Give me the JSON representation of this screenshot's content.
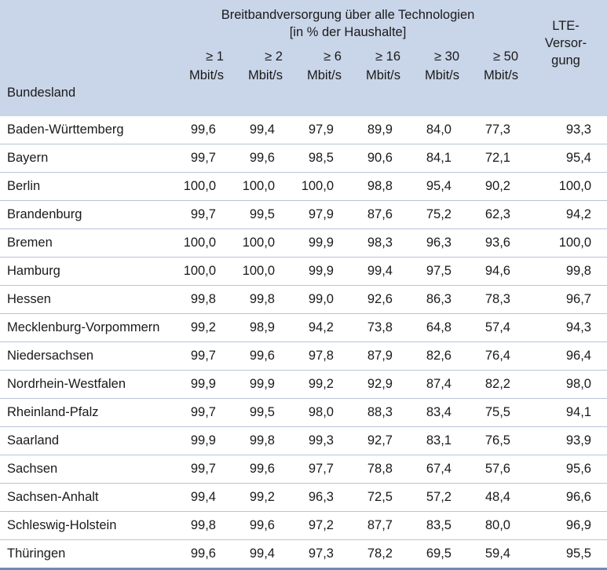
{
  "header": {
    "group_line1": "Breitbandversorgung über alle Technologien",
    "group_line2": "[in % der Haushalte]",
    "land_label": "Bundesland",
    "lte_line1": "LTE-",
    "lte_line2": "Versor-",
    "lte_line3": "gung",
    "speeds": [
      {
        "threshold": "≥ 1",
        "unit": "Mbit/s"
      },
      {
        "threshold": "≥ 2",
        "unit": "Mbit/s"
      },
      {
        "threshold": "≥ 6",
        "unit": "Mbit/s"
      },
      {
        "threshold": "≥ 16",
        "unit": "Mbit/s"
      },
      {
        "threshold": "≥ 30",
        "unit": "Mbit/s"
      },
      {
        "threshold": "≥ 50",
        "unit": "Mbit/s"
      }
    ]
  },
  "rows": [
    {
      "land": "Baden-Württemberg",
      "values": [
        "99,6",
        "99,4",
        "97,9",
        "89,9",
        "84,0",
        "77,3"
      ],
      "lte": "93,3"
    },
    {
      "land": "Bayern",
      "values": [
        "99,7",
        "99,6",
        "98,5",
        "90,6",
        "84,1",
        "72,1"
      ],
      "lte": "95,4"
    },
    {
      "land": "Berlin",
      "values": [
        "100,0",
        "100,0",
        "100,0",
        "98,8",
        "95,4",
        "90,2"
      ],
      "lte": "100,0"
    },
    {
      "land": "Brandenburg",
      "values": [
        "99,7",
        "99,5",
        "97,9",
        "87,6",
        "75,2",
        "62,3"
      ],
      "lte": "94,2"
    },
    {
      "land": "Bremen",
      "values": [
        "100,0",
        "100,0",
        "99,9",
        "98,3",
        "96,3",
        "93,6"
      ],
      "lte": "100,0"
    },
    {
      "land": "Hamburg",
      "values": [
        "100,0",
        "100,0",
        "99,9",
        "99,4",
        "97,5",
        "94,6"
      ],
      "lte": "99,8"
    },
    {
      "land": "Hessen",
      "values": [
        "99,8",
        "99,8",
        "99,0",
        "92,6",
        "86,3",
        "78,3"
      ],
      "lte": "96,7"
    },
    {
      "land": "Mecklenburg-Vorpommern",
      "values": [
        "99,2",
        "98,9",
        "94,2",
        "73,8",
        "64,8",
        "57,4"
      ],
      "lte": "94,3"
    },
    {
      "land": "Niedersachsen",
      "values": [
        "99,7",
        "99,6",
        "97,8",
        "87,9",
        "82,6",
        "76,4"
      ],
      "lte": "96,4"
    },
    {
      "land": "Nordrhein-Westfalen",
      "values": [
        "99,9",
        "99,9",
        "99,2",
        "92,9",
        "87,4",
        "82,2"
      ],
      "lte": "98,0"
    },
    {
      "land": "Rheinland-Pfalz",
      "values": [
        "99,7",
        "99,5",
        "98,0",
        "88,3",
        "83,4",
        "75,5"
      ],
      "lte": "94,1"
    },
    {
      "land": "Saarland",
      "values": [
        "99,9",
        "99,8",
        "99,3",
        "92,7",
        "83,1",
        "76,5"
      ],
      "lte": "93,9"
    },
    {
      "land": "Sachsen",
      "values": [
        "99,7",
        "99,6",
        "97,7",
        "78,8",
        "67,4",
        "57,6"
      ],
      "lte": "95,6"
    },
    {
      "land": "Sachsen-Anhalt",
      "values": [
        "99,4",
        "99,2",
        "96,3",
        "72,5",
        "57,2",
        "48,4"
      ],
      "lte": "96,6"
    },
    {
      "land": "Schleswig-Holstein",
      "values": [
        "99,8",
        "99,6",
        "97,2",
        "87,7",
        "83,5",
        "80,0"
      ],
      "lte": "96,9"
    },
    {
      "land": "Thüringen",
      "values": [
        "99,6",
        "99,4",
        "97,3",
        "78,2",
        "69,5",
        "59,4"
      ],
      "lte": "95,5"
    }
  ]
}
